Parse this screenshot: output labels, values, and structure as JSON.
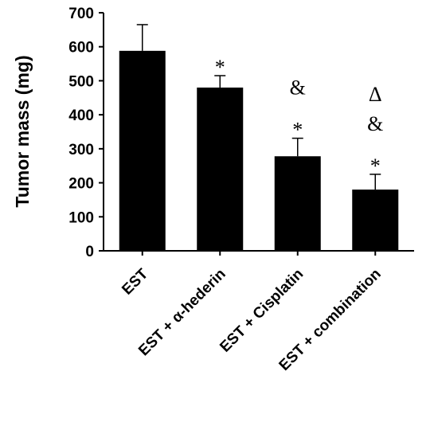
{
  "chart_data": {
    "type": "bar",
    "categories": [
      "EST",
      "EST + α-hederin",
      "EST + Cisplatin",
      "EST + combination"
    ],
    "values": [
      588,
      480,
      278,
      180
    ],
    "error": [
      77,
      35,
      53,
      45
    ],
    "annotations": [
      [],
      [
        "*"
      ],
      [
        "&",
        "*"
      ],
      [
        "Δ",
        "&",
        "*"
      ]
    ],
    "xlabel": "",
    "ylabel": "Tumor mass (mg)",
    "ylim": [
      0,
      700
    ],
    "yticks": [
      0,
      100,
      200,
      300,
      400,
      500,
      600,
      700
    ],
    "grid": false,
    "bar_color": "#000000"
  }
}
